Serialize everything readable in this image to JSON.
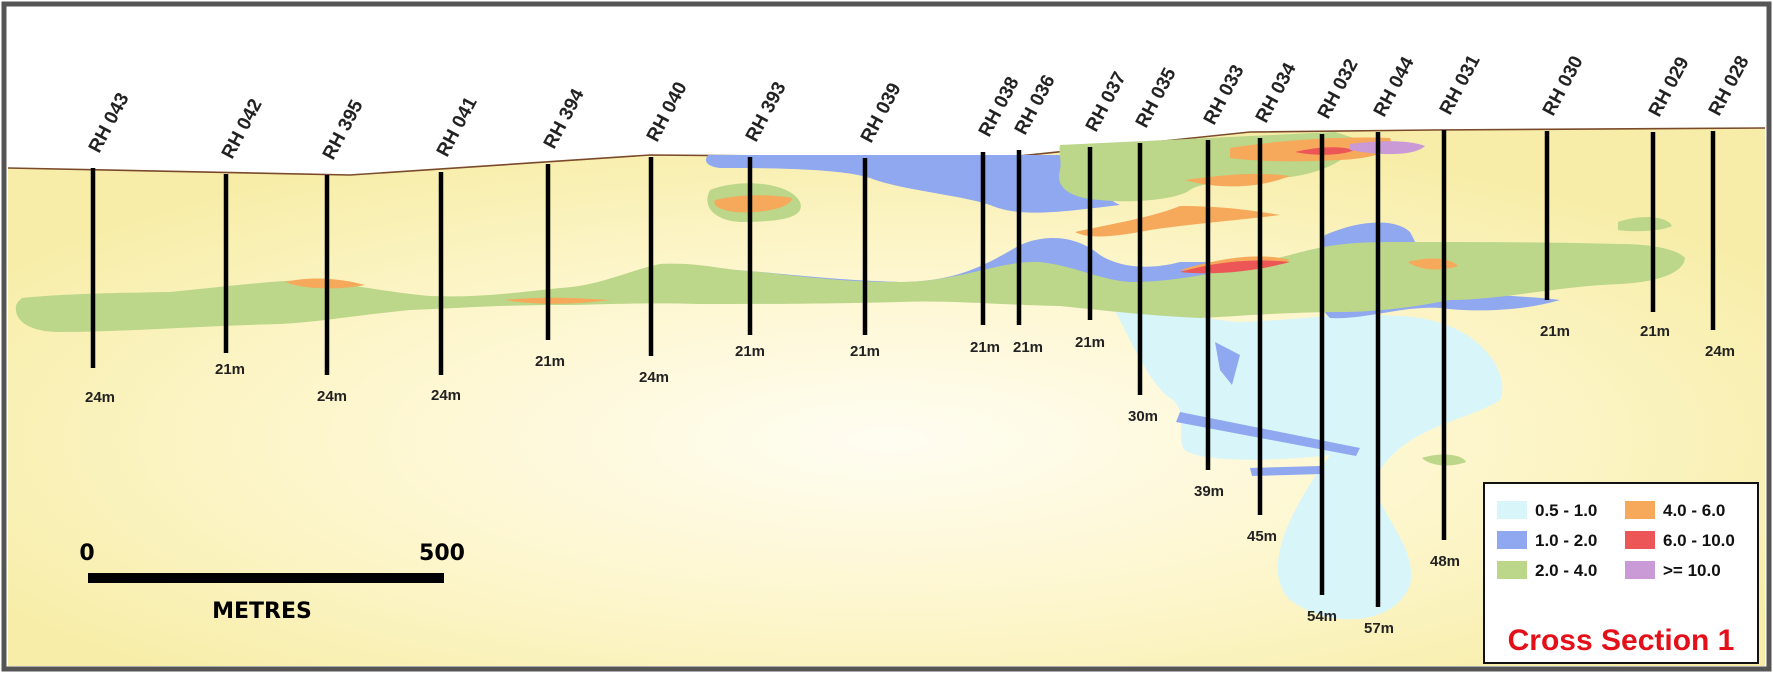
{
  "section_title": "Cross Section 1",
  "scale": {
    "start_label": "0",
    "end_label": "500",
    "unit_label": "METRES"
  },
  "legend": [
    {
      "label": "0.5 - 1.0",
      "color": "#d8f6fa"
    },
    {
      "label": "1.0 - 2.0",
      "color": "#8fa8f0"
    },
    {
      "label": "2.0 - 4.0",
      "color": "#bcd68a"
    },
    {
      "label": "4.0 - 6.0",
      "color": "#f6a95a"
    },
    {
      "label": "6.0 - 10.0",
      "color": "#ec5656"
    },
    {
      "label": ">= 10.0",
      "color": "#c99ad6"
    }
  ],
  "drillholes": [
    {
      "name": "RH 043",
      "depth": "24m"
    },
    {
      "name": "RH 042",
      "depth": "21m"
    },
    {
      "name": "RH 395",
      "depth": "24m"
    },
    {
      "name": "RH 041",
      "depth": "24m"
    },
    {
      "name": "RH 394",
      "depth": "21m"
    },
    {
      "name": "RH 040",
      "depth": "24m"
    },
    {
      "name": "RH 393",
      "depth": "21m"
    },
    {
      "name": "RH 039",
      "depth": "21m"
    },
    {
      "name": "RH 038",
      "depth": "21m"
    },
    {
      "name": "RH 036",
      "depth": "21m"
    },
    {
      "name": "RH 037",
      "depth": "21m"
    },
    {
      "name": "RH 035",
      "depth": "30m"
    },
    {
      "name": "RH 033",
      "depth": "39m"
    },
    {
      "name": "RH 034",
      "depth": "45m"
    },
    {
      "name": "RH 032",
      "depth": "54m"
    },
    {
      "name": "RH 044",
      "depth": "57m"
    },
    {
      "name": "RH 031",
      "depth": "48m"
    },
    {
      "name": "RH 030",
      "depth": "21m"
    },
    {
      "name": "RH 029",
      "depth": "21m"
    },
    {
      "name": "RH 028",
      "depth": "24m"
    }
  ],
  "colors": {
    "ground": "#fdf5c4",
    "sky": "#ffffff",
    "frame": "#555555",
    "title": "#e3101a"
  }
}
